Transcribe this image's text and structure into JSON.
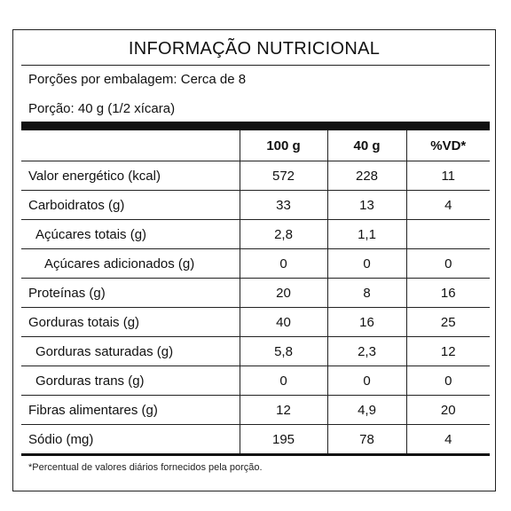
{
  "label": {
    "title": "INFORMAÇÃO NUTRICIONAL",
    "servings_per_package": "Porções por embalagem: Cerca de 8",
    "portion": "Porção: 40 g (1/2 xícara)",
    "columns": [
      "",
      "100 g",
      "40 g",
      "%VD*"
    ],
    "rows": [
      {
        "name": "Valor energético (kcal)",
        "v100": "572",
        "v40": "228",
        "vd": "11",
        "indent": 0
      },
      {
        "name": "Carboidratos (g)",
        "v100": "33",
        "v40": "13",
        "vd": "4",
        "indent": 0
      },
      {
        "name": "Açúcares totais (g)",
        "v100": "2,8",
        "v40": "1,1",
        "vd": "",
        "indent": 1
      },
      {
        "name": "Açúcares adicionados (g)",
        "v100": "0",
        "v40": "0",
        "vd": "0",
        "indent": 2
      },
      {
        "name": "Proteínas (g)",
        "v100": "20",
        "v40": "8",
        "vd": "16",
        "indent": 0
      },
      {
        "name": "Gorduras totais (g)",
        "v100": "40",
        "v40": "16",
        "vd": "25",
        "indent": 0
      },
      {
        "name": "Gorduras saturadas (g)",
        "v100": "5,8",
        "v40": "2,3",
        "vd": "12",
        "indent": 1
      },
      {
        "name": "Gorduras trans (g)",
        "v100": "0",
        "v40": "0",
        "vd": "0",
        "indent": 1
      },
      {
        "name": "Fibras alimentares (g)",
        "v100": "12",
        "v40": "4,9",
        "vd": "20",
        "indent": 0
      },
      {
        "name": "Sódio (mg)",
        "v100": "195",
        "v40": "78",
        "vd": "4",
        "indent": 0
      }
    ],
    "footnote": "*Percentual de valores diários fornecidos pela porção."
  }
}
